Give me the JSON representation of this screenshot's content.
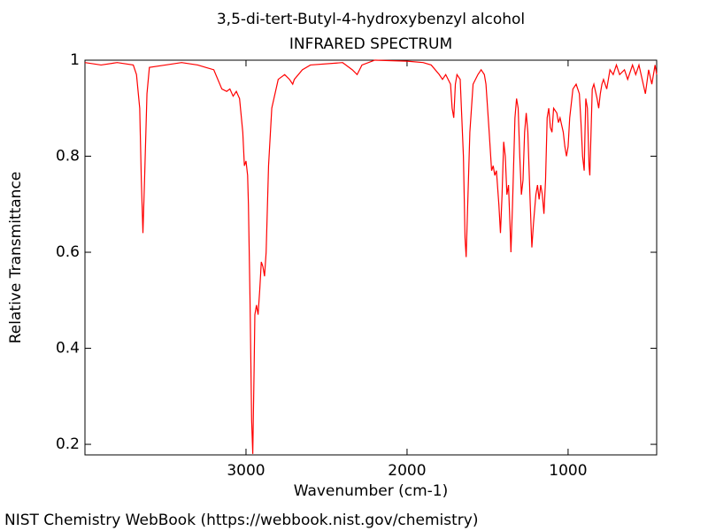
{
  "chart_data": {
    "type": "line",
    "title": "3,5-di-tert-Butyl-4-hydroxybenzyl alcohol",
    "subtitle": "INFRARED SPECTRUM",
    "x_label": "Wavenumber (cm-1)",
    "y_label": "Relative Transmittance",
    "color": "#ff0000",
    "xlim": [
      4000,
      450
    ],
    "ylim": [
      0.178,
      1.0
    ],
    "xticks": [
      3000,
      2000,
      1000
    ],
    "yticks": [
      0.2,
      0.4,
      0.6,
      0.8,
      1
    ],
    "x": [
      4000,
      3900,
      3800,
      3700,
      3680,
      3660,
      3650,
      3640,
      3630,
      3615,
      3600,
      3500,
      3400,
      3300,
      3250,
      3200,
      3150,
      3120,
      3100,
      3080,
      3060,
      3040,
      3020,
      3010,
      3000,
      2990,
      2985,
      2975,
      2965,
      2958,
      2950,
      2945,
      2935,
      2925,
      2915,
      2905,
      2895,
      2885,
      2875,
      2860,
      2840,
      2800,
      2760,
      2730,
      2710,
      2700,
      2650,
      2600,
      2400,
      2340,
      2310,
      2280,
      2200,
      2000,
      1900,
      1850,
      1800,
      1780,
      1760,
      1730,
      1720,
      1710,
      1700,
      1690,
      1670,
      1650,
      1640,
      1633,
      1625,
      1610,
      1590,
      1560,
      1540,
      1520,
      1510,
      1490,
      1475,
      1465,
      1455,
      1445,
      1430,
      1420,
      1410,
      1400,
      1390,
      1380,
      1370,
      1360,
      1355,
      1345,
      1330,
      1320,
      1310,
      1300,
      1290,
      1280,
      1270,
      1260,
      1250,
      1235,
      1225,
      1215,
      1200,
      1190,
      1180,
      1170,
      1160,
      1150,
      1140,
      1130,
      1120,
      1110,
      1100,
      1090,
      1070,
      1060,
      1050,
      1030,
      1020,
      1010,
      1000,
      990,
      970,
      950,
      930,
      920,
      910,
      900,
      895,
      890,
      880,
      870,
      865,
      860,
      850,
      840,
      820,
      810,
      800,
      790,
      780,
      760,
      750,
      740,
      720,
      700,
      680,
      650,
      630,
      600,
      580,
      560,
      540,
      520,
      500,
      480,
      460,
      450
    ],
    "values": [
      0.995,
      0.99,
      0.995,
      0.99,
      0.97,
      0.9,
      0.75,
      0.64,
      0.75,
      0.93,
      0.985,
      0.99,
      0.995,
      0.99,
      0.985,
      0.98,
      0.94,
      0.935,
      0.94,
      0.925,
      0.935,
      0.92,
      0.85,
      0.78,
      0.79,
      0.76,
      0.7,
      0.5,
      0.25,
      0.18,
      0.35,
      0.47,
      0.49,
      0.47,
      0.52,
      0.58,
      0.57,
      0.55,
      0.6,
      0.78,
      0.9,
      0.96,
      0.97,
      0.96,
      0.95,
      0.96,
      0.98,
      0.99,
      0.995,
      0.98,
      0.97,
      0.99,
      1.0,
      0.998,
      0.995,
      0.99,
      0.97,
      0.96,
      0.97,
      0.95,
      0.9,
      0.88,
      0.95,
      0.97,
      0.96,
      0.8,
      0.63,
      0.59,
      0.68,
      0.85,
      0.95,
      0.97,
      0.98,
      0.97,
      0.95,
      0.85,
      0.77,
      0.78,
      0.76,
      0.77,
      0.7,
      0.64,
      0.72,
      0.83,
      0.8,
      0.72,
      0.74,
      0.65,
      0.6,
      0.7,
      0.88,
      0.92,
      0.9,
      0.8,
      0.72,
      0.75,
      0.85,
      0.89,
      0.85,
      0.7,
      0.61,
      0.66,
      0.72,
      0.74,
      0.71,
      0.74,
      0.72,
      0.68,
      0.75,
      0.88,
      0.9,
      0.86,
      0.85,
      0.9,
      0.89,
      0.87,
      0.88,
      0.85,
      0.82,
      0.8,
      0.82,
      0.88,
      0.94,
      0.95,
      0.93,
      0.87,
      0.8,
      0.77,
      0.85,
      0.92,
      0.9,
      0.78,
      0.76,
      0.82,
      0.94,
      0.95,
      0.92,
      0.9,
      0.93,
      0.95,
      0.96,
      0.94,
      0.96,
      0.98,
      0.97,
      0.99,
      0.97,
      0.98,
      0.96,
      0.99,
      0.97,
      0.99,
      0.96,
      0.93,
      0.98,
      0.95,
      0.99,
      0.97
    ]
  },
  "footer": "NIST Chemistry WebBook (https://webbook.nist.gov/chemistry)"
}
